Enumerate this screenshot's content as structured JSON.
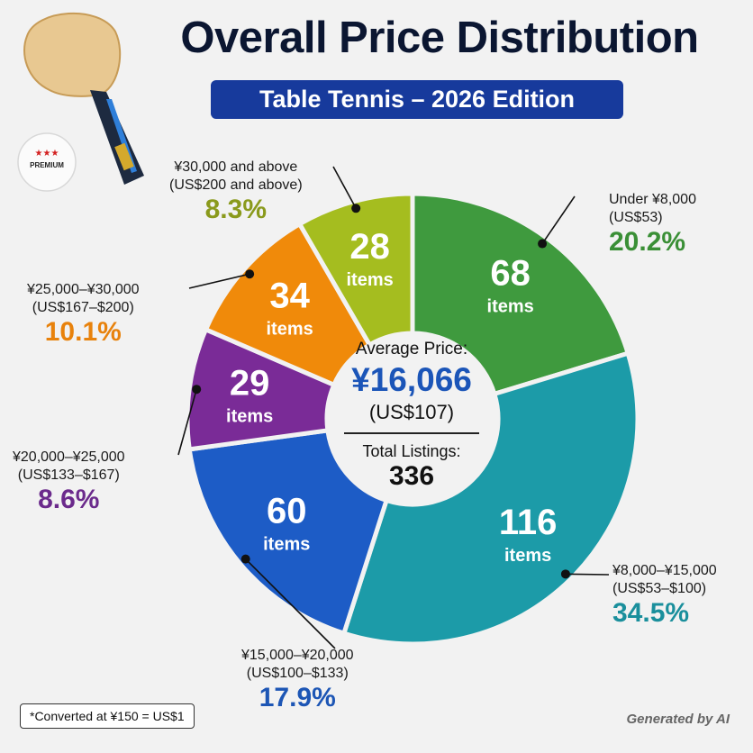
{
  "header": {
    "title": "Overall Price Distribution",
    "subtitle": "Table Tennis – 2026 Edition"
  },
  "illustration": {
    "ball_label": "PREMIUM",
    "ball_stars": "★★★",
    "ball_icon": "ping-pong-ball-icon",
    "paddle_icon": "table-tennis-paddle-icon"
  },
  "center": {
    "avg_label": "Average Price:",
    "avg_yen": "¥16,066",
    "avg_usd": "(US$107)",
    "total_label": "Total Listings:",
    "total_value": "336"
  },
  "chart_data": {
    "type": "pie",
    "title": "Overall Price Distribution",
    "subtitle": "Table Tennis – 2026 Edition",
    "total": 336,
    "unit_label": "items",
    "slices": [
      {
        "range": "Under ¥8,000",
        "range_usd": "(US$53)",
        "count": 68,
        "percent": "20.2%",
        "color": "#3f9a3e"
      },
      {
        "range": "¥8,000–¥15,000",
        "range_usd": "(US$53–$100)",
        "count": 116,
        "percent": "34.5%",
        "color": "#1c9ba8"
      },
      {
        "range": "¥15,000–¥20,000",
        "range_usd": "(US$100–$133)",
        "count": 60,
        "percent": "17.9%",
        "color": "#1d5cc6"
      },
      {
        "range": "¥20,000–¥25,000",
        "range_usd": "(US$133–$167)",
        "count": 29,
        "percent": "8.6%",
        "color": "#7a2b97"
      },
      {
        "range": "¥25,000–¥30,000",
        "range_usd": "(US$167–$200)",
        "count": 34,
        "percent": "10.1%",
        "color": "#f08a0a"
      },
      {
        "range": "¥30,000 and above",
        "range_usd": "(US$200 and above)",
        "count": 28,
        "percent": "8.3%",
        "color": "#a5bd1f"
      }
    ],
    "percent_colors": [
      "#3a8f36",
      "#1a8f9c",
      "#1d56b5",
      "#6b2a8c",
      "#e8820c",
      "#8a9a1c"
    ]
  },
  "footer": {
    "footnote": "*Converted at ¥150 = US$1",
    "generated": "Generated by AI"
  }
}
